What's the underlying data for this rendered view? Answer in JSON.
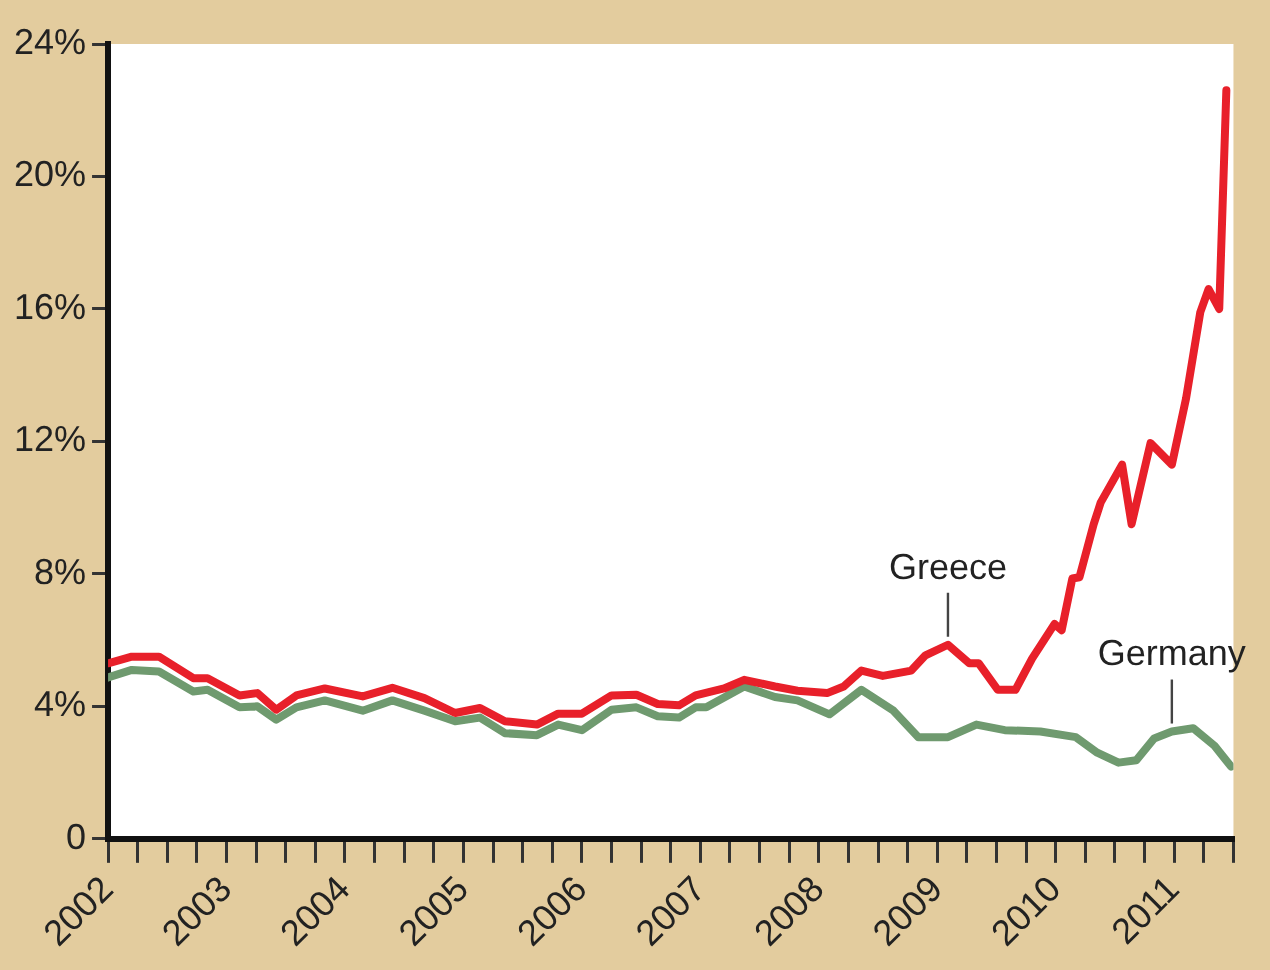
{
  "chart_data": {
    "type": "line",
    "series": [
      {
        "color": "#e8202a",
        "x": [
          2002,
          2002.2,
          2002.43,
          2002.72,
          2002.84,
          2003.11,
          2003.26,
          2003.42,
          2003.59,
          2003.83,
          2004.15,
          2004.4,
          2004.67,
          2004.93,
          2005.14,
          2005.35,
          2005.62,
          2005.8,
          2006,
          2006.25,
          2006.46,
          2006.64,
          2006.82,
          2006.96,
          2007.2,
          2007.37,
          2007.63,
          2007.82,
          2008.07,
          2008.21,
          2008.36,
          2008.54,
          2008.78,
          2008.9,
          2009.09,
          2009.27,
          2009.35,
          2009.51,
          2009.66,
          2009.8,
          2009.99,
          2010.05,
          2010.14,
          2010.2,
          2010.32,
          2010.38,
          2010.56,
          2010.64,
          2010.8,
          2010.98,
          2011.1,
          2011.22,
          2011.29,
          2011.38,
          2011.44
        ],
        "values": [
          5.3,
          5.5,
          5.5,
          4.85,
          4.85,
          4.33,
          4.4,
          3.9,
          4.33,
          4.54,
          4.3,
          4.56,
          4.25,
          3.8,
          3.95,
          3.55,
          3.45,
          3.78,
          3.78,
          4.33,
          4.35,
          4.07,
          4.03,
          4.33,
          4.54,
          4.8,
          4.6,
          4.47,
          4.4,
          4.6,
          5.08,
          4.92,
          5.08,
          5.54,
          5.86,
          5.3,
          5.3,
          4.5,
          4.5,
          5.44,
          6.49,
          6.3,
          7.86,
          7.9,
          9.5,
          10.16,
          11.3,
          9.5,
          11.95,
          11.3,
          13.3,
          15.9,
          16.6,
          16.0,
          22.6
        ]
      },
      {
        "color": "#6f9a6f",
        "x": [
          2002,
          2002.2,
          2002.43,
          2002.72,
          2002.84,
          2003.11,
          2003.26,
          2003.42,
          2003.59,
          2003.83,
          2004.15,
          2004.4,
          2004.67,
          2004.93,
          2005.14,
          2005.35,
          2005.62,
          2005.8,
          2006,
          2006.25,
          2006.46,
          2006.64,
          2006.82,
          2006.96,
          2007.05,
          2007.37,
          2007.63,
          2007.82,
          2008.09,
          2008.36,
          2008.63,
          2008.84,
          2009.09,
          2009.33,
          2009.57,
          2009.87,
          2010.17,
          2010.35,
          2010.53,
          2010.68,
          2010.83,
          2010.98,
          2011.16,
          2011.34,
          2011.48
        ],
        "values": [
          4.87,
          5.1,
          5.05,
          4.45,
          4.5,
          3.97,
          4.0,
          3.6,
          3.97,
          4.18,
          3.87,
          4.18,
          3.87,
          3.55,
          3.66,
          3.19,
          3.13,
          3.45,
          3.28,
          3.9,
          3.97,
          3.7,
          3.66,
          3.97,
          3.97,
          4.6,
          4.28,
          4.18,
          3.76,
          4.5,
          3.87,
          3.07,
          3.07,
          3.45,
          3.28,
          3.24,
          3.07,
          2.6,
          2.3,
          2.37,
          3.03,
          3.24,
          3.34,
          2.81,
          2.18
        ]
      }
    ],
    "xlim": [
      2002,
      2011.5
    ],
    "xticks": [
      2002,
      {
        "value": 2002.25,
        "label": null
      },
      {
        "value": 2002.5,
        "label": null
      },
      {
        "value": 2002.75,
        "label": null
      },
      2003,
      {
        "value": 2003.25,
        "label": null
      },
      {
        "value": 2003.5,
        "label": null
      },
      {
        "value": 2003.75,
        "label": null
      },
      2004,
      {
        "value": 2004.25,
        "label": null
      },
      {
        "value": 2004.5,
        "label": null
      },
      {
        "value": 2004.75,
        "label": null
      },
      2005,
      {
        "value": 2005.25,
        "label": null
      },
      {
        "value": 2005.5,
        "label": null
      },
      {
        "value": 2005.75,
        "label": null
      },
      2006,
      {
        "value": 2006.25,
        "label": null
      },
      {
        "value": 2006.5,
        "label": null
      },
      {
        "value": 2006.75,
        "label": null
      },
      2007,
      {
        "value": 2007.25,
        "label": null
      },
      {
        "value": 2007.5,
        "label": null
      },
      {
        "value": 2007.75,
        "label": null
      },
      2008,
      {
        "value": 2008.25,
        "label": null
      },
      {
        "value": 2008.5,
        "label": null
      },
      {
        "value": 2008.75,
        "label": null
      },
      2009,
      {
        "value": 2009.25,
        "label": null
      },
      {
        "value": 2009.5,
        "label": null
      },
      {
        "value": 2009.75,
        "label": null
      },
      2010,
      {
        "value": 2010.25,
        "label": null
      },
      {
        "value": 2010.5,
        "label": null
      },
      {
        "value": 2010.75,
        "label": null
      },
      2011,
      {
        "value": 2011.25,
        "label": null
      },
      {
        "value": 2011.5,
        "label": null
      }
    ],
    "ylim": [
      0,
      24
    ],
    "yticks": [
      0,
      {
        "value": 4,
        "label": "4%"
      },
      {
        "value": 8,
        "label": "8%"
      },
      {
        "value": 12,
        "label": "12%"
      },
      {
        "value": 16,
        "label": "16%"
      },
      {
        "value": 20,
        "label": "20%"
      },
      {
        "value": 24,
        "label": "24%"
      }
    ],
    "annotations": [
      {
        "text": "Greece",
        "x": 2009.09,
        "y": 5.86
      },
      {
        "text": "Germany",
        "x": 2010.98,
        "y": 3.24
      }
    ],
    "grid": false,
    "legend": false,
    "marker": "none",
    "line_style": "solid"
  }
}
